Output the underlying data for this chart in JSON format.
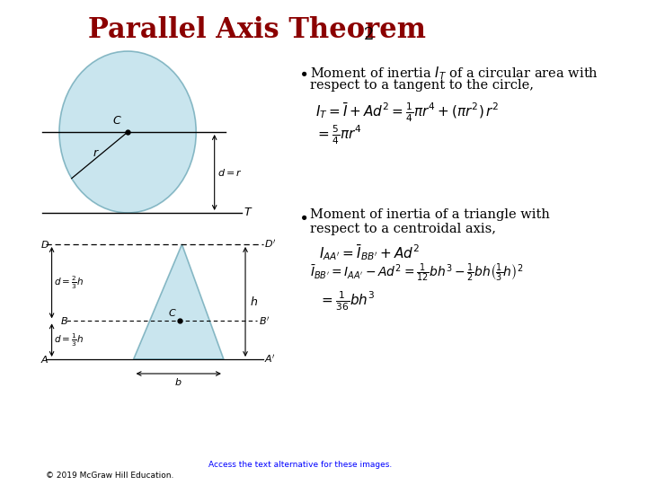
{
  "title": "Parallel Axis Theorem",
  "title_subscript": "2",
  "title_color": "#8B0000",
  "bg_color": "#FFFFFF",
  "formula1a": "$I_T = \\bar{I} + Ad^2 = \\frac{1}{4}\\pi r^4 + (\\pi r^2)\\, r^2$",
  "formula1b": "$= \\frac{5}{4}\\pi r^4$",
  "formula2a": "$I_{AA'} = \\bar{I}_{BB'} + Ad^2$",
  "formula2b": "$\\bar{I}_{BB'} = I_{AA'} - Ad^2 = \\frac{1}{12}bh^3 - \\frac{1}{2}bh\\left(\\frac{1}{3}h\\right)^{2}$",
  "formula2c": "$= \\frac{1}{36}bh^3$",
  "footer_link": "Access the text alternative for these images.",
  "footer_copy": "© 2019 McGraw Hill Education.",
  "circle_fill": "#ADD8E6",
  "triangle_fill": "#ADD8E6"
}
